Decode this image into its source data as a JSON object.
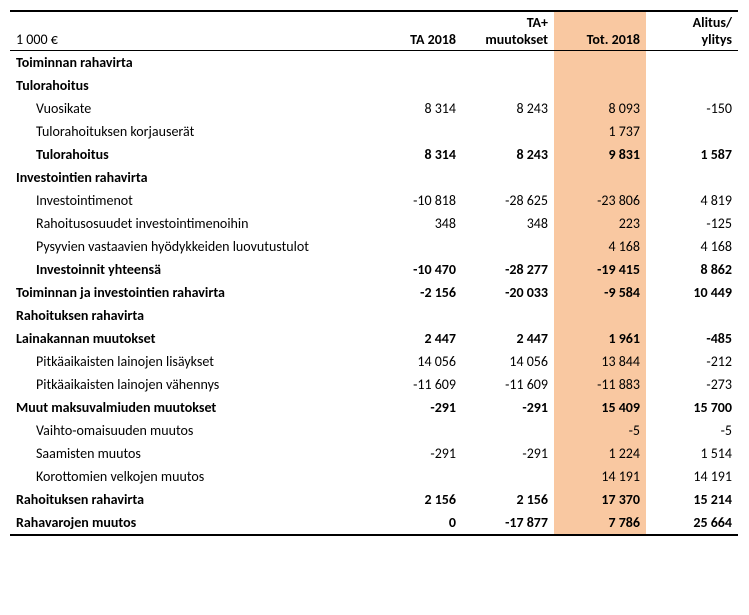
{
  "header": {
    "unit": "1 000 €",
    "cols": [
      "TA 2018",
      "TA+ muutokset",
      "Tot. 2018",
      "Alitus/ ylitys"
    ]
  },
  "highlight_col_bg": "#f9c8a1",
  "rows": [
    {
      "label": "Toiminnan rahavirta",
      "indent": 0,
      "bold": true,
      "v": [
        "",
        "",
        "",
        ""
      ]
    },
    {
      "label": "Tulorahoitus",
      "indent": 0,
      "bold": true,
      "v": [
        "",
        "",
        "",
        ""
      ]
    },
    {
      "label": "Vuosikate",
      "indent": 2,
      "bold": false,
      "v": [
        "8 314",
        "8 243",
        "8 093",
        "-150"
      ]
    },
    {
      "label": "Tulorahoituksen korjauserät",
      "indent": 2,
      "bold": false,
      "v": [
        "",
        "",
        "1 737",
        ""
      ]
    },
    {
      "label": "Tulorahoitus",
      "indent": 2,
      "bold": true,
      "v": [
        "8 314",
        "8 243",
        "9 831",
        "1 587"
      ]
    },
    {
      "label": "Investointien rahavirta",
      "indent": 0,
      "bold": true,
      "v": [
        "",
        "",
        "",
        ""
      ]
    },
    {
      "label": "Investointimenot",
      "indent": 2,
      "bold": false,
      "v": [
        "-10 818",
        "-28 625",
        "-23 806",
        "4 819"
      ]
    },
    {
      "label": "Rahoitusosuudet investointimenoihin",
      "indent": 2,
      "bold": false,
      "v": [
        "348",
        "348",
        "223",
        "-125"
      ]
    },
    {
      "label": "Pysyvien vastaavien hyödykkeiden luovutustulot",
      "indent": 2,
      "bold": false,
      "v": [
        "",
        "",
        "4 168",
        "4 168"
      ]
    },
    {
      "label": "Investoinnit yhteensä",
      "indent": 2,
      "bold": true,
      "v": [
        "-10 470",
        "-28 277",
        "-19 415",
        "8 862"
      ]
    },
    {
      "label": "Toiminnan ja investointien rahavirta",
      "indent": 0,
      "bold": true,
      "v": [
        "-2 156",
        "-20 033",
        "-9 584",
        "10 449"
      ]
    },
    {
      "label": "Rahoituksen rahavirta",
      "indent": 0,
      "bold": true,
      "v": [
        "",
        "",
        "",
        ""
      ]
    },
    {
      "label": "Lainakannan muutokset",
      "indent": 0,
      "bold": true,
      "v": [
        "2 447",
        "2 447",
        "1 961",
        "-485"
      ]
    },
    {
      "label": "Pitkäaikaisten lainojen lisäykset",
      "indent": 2,
      "bold": false,
      "v": [
        "14 056",
        "14 056",
        "13 844",
        "-212"
      ]
    },
    {
      "label": "Pitkäaikaisten lainojen vähennys",
      "indent": 2,
      "bold": false,
      "v": [
        "-11 609",
        "-11 609",
        "-11 883",
        "-273"
      ]
    },
    {
      "label": "Muut maksuvalmiuden muutokset",
      "indent": 0,
      "bold": true,
      "v": [
        "-291",
        "-291",
        "15 409",
        "15 700"
      ]
    },
    {
      "label": "Vaihto-omaisuuden muutos",
      "indent": 2,
      "bold": false,
      "v": [
        "",
        "",
        "-5",
        "-5"
      ]
    },
    {
      "label": "Saamisten muutos",
      "indent": 2,
      "bold": false,
      "v": [
        "-291",
        "-291",
        "1 224",
        "1 514"
      ]
    },
    {
      "label": "Korottomien velkojen muutos",
      "indent": 2,
      "bold": false,
      "v": [
        "",
        "",
        "14 191",
        "14 191"
      ]
    },
    {
      "label": "Rahoituksen rahavirta",
      "indent": 0,
      "bold": true,
      "v": [
        "2 156",
        "2 156",
        "17 370",
        "15 214"
      ]
    },
    {
      "label": "Rahavarojen muutos",
      "indent": 0,
      "bold": true,
      "v": [
        "0",
        "-17 877",
        "7 786",
        "25 664"
      ]
    }
  ]
}
